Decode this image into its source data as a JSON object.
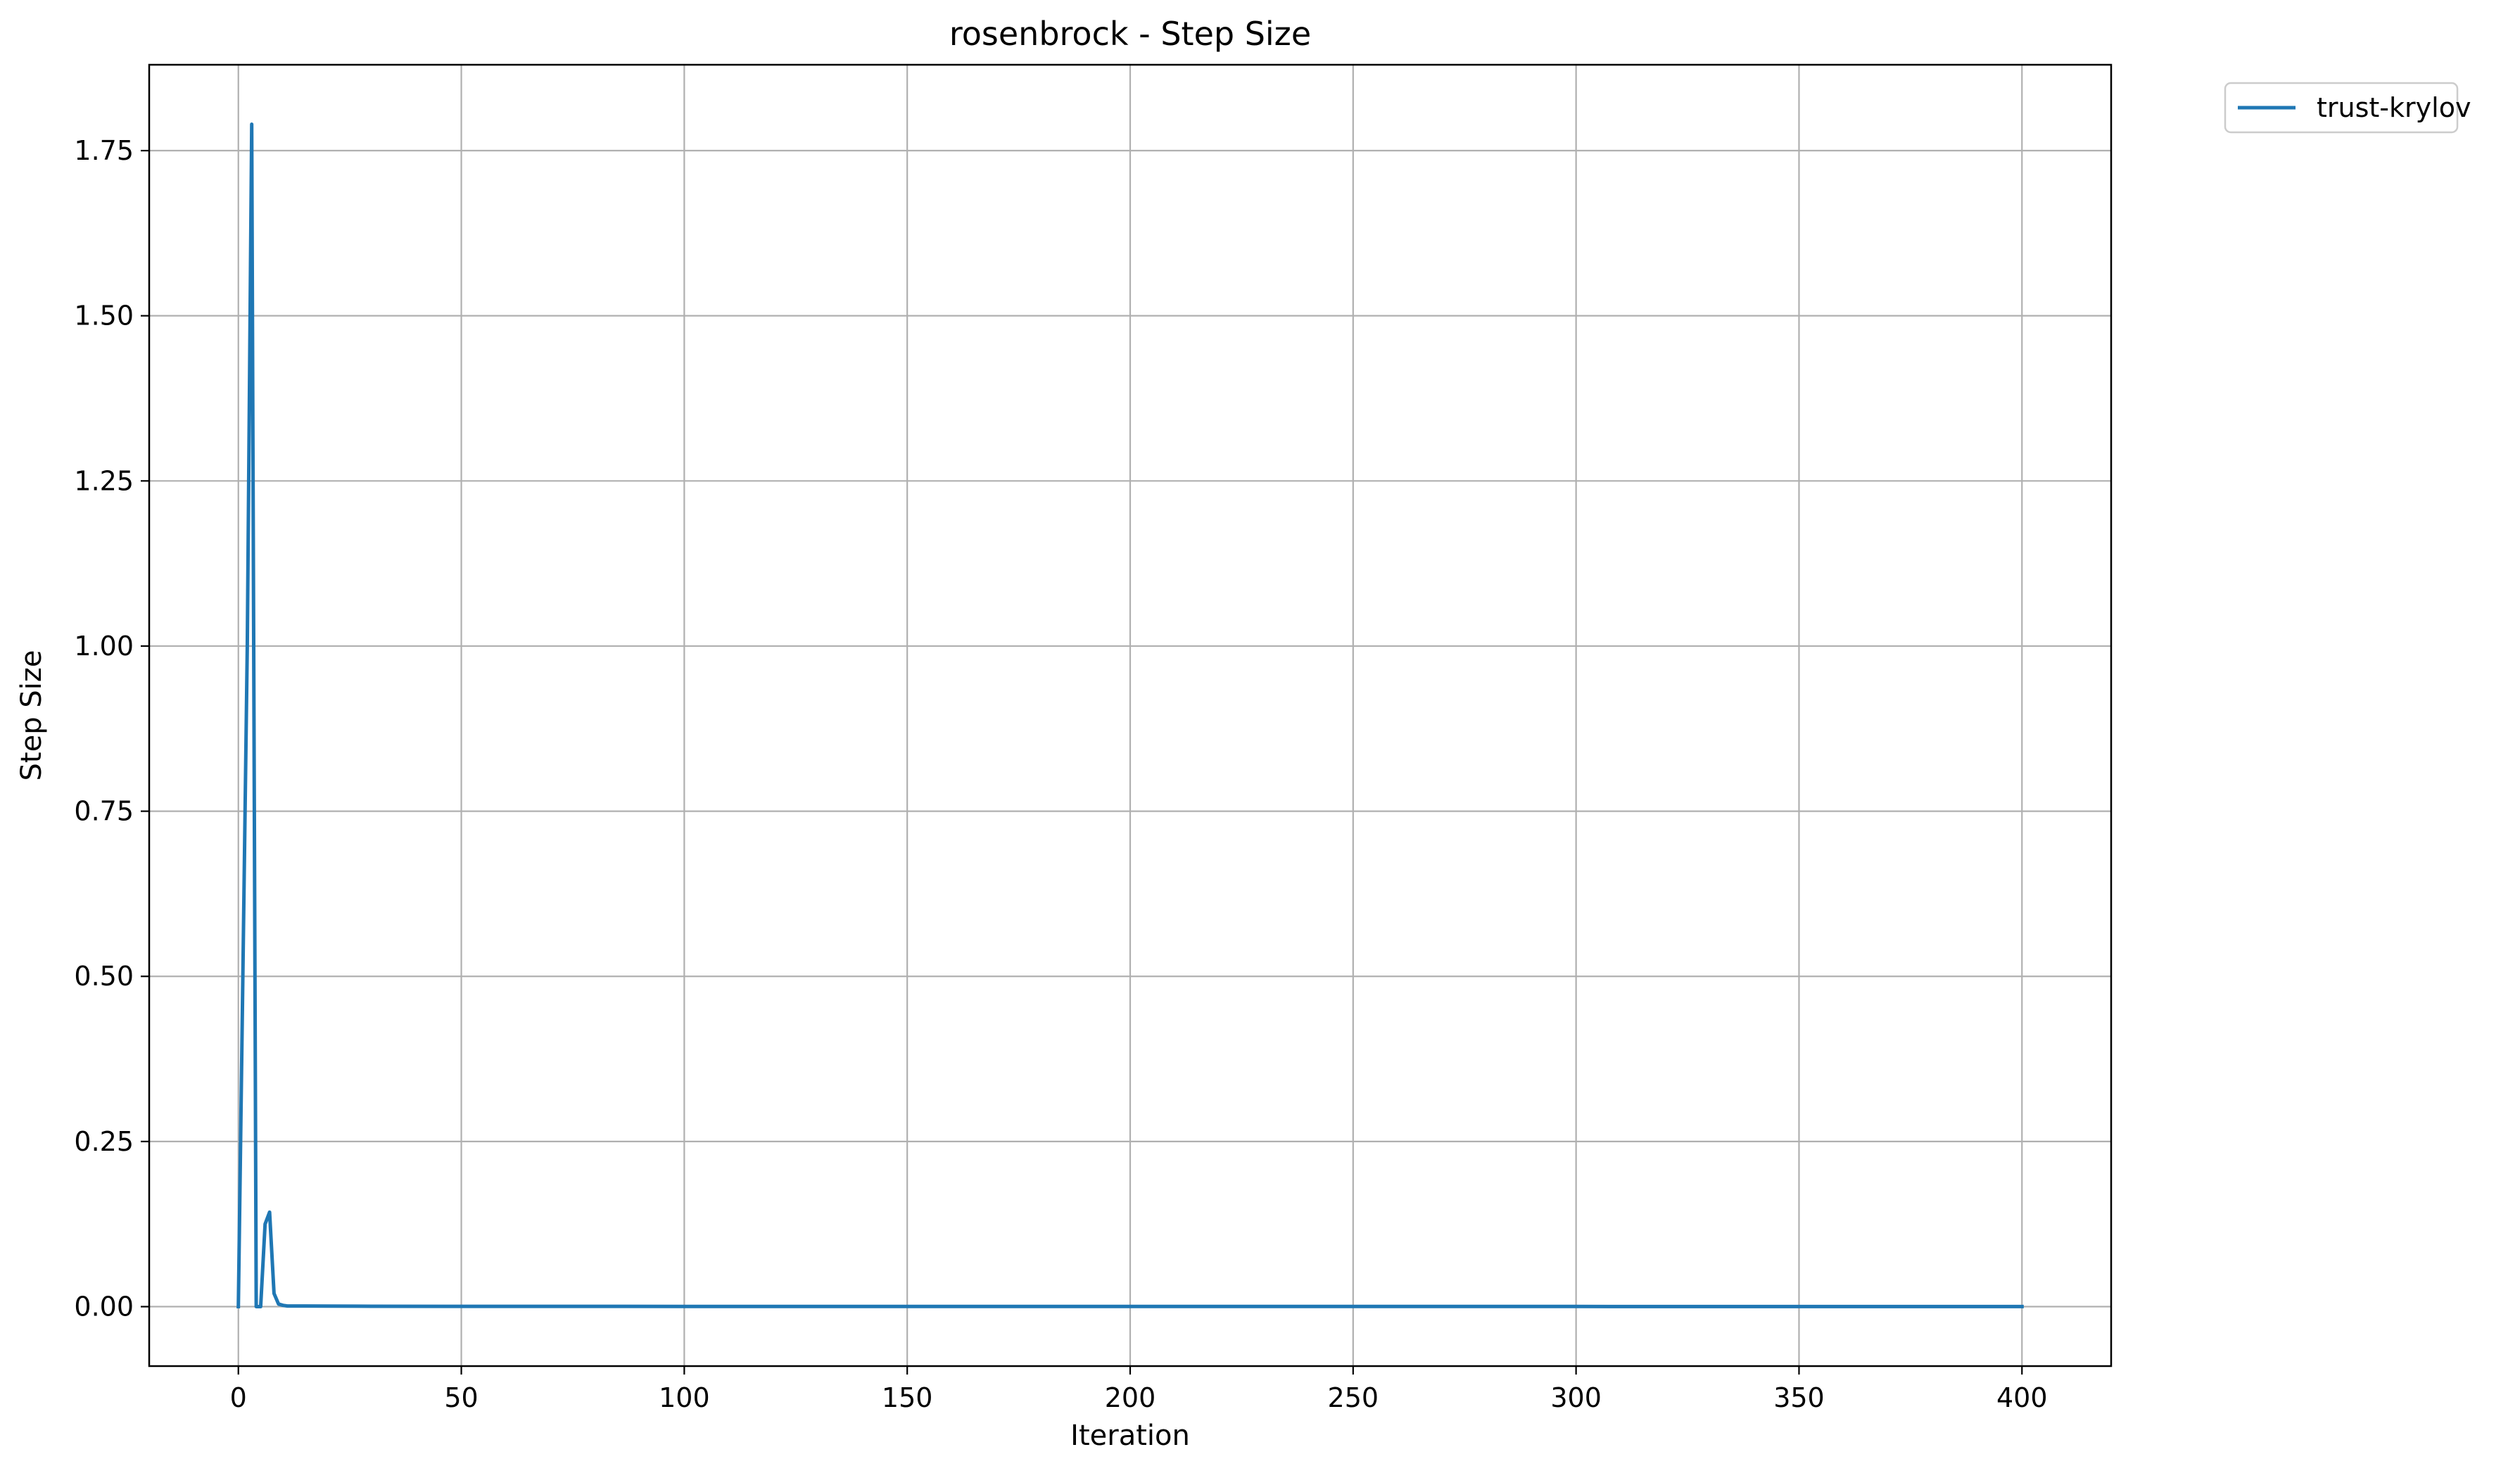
{
  "chart_data": {
    "type": "line",
    "title": "rosenbrock - Step Size",
    "xlabel": "Iteration",
    "ylabel": "Step Size",
    "xlim": [
      -20,
      420
    ],
    "ylim": [
      -0.09,
      1.88
    ],
    "xticks": [
      0,
      50,
      100,
      150,
      200,
      250,
      300,
      350,
      400
    ],
    "xtick_labels": [
      "0",
      "50",
      "100",
      "150",
      "200",
      "250",
      "300",
      "350",
      "400"
    ],
    "yticks": [
      0.0,
      0.25,
      0.5,
      0.75,
      1.0,
      1.25,
      1.5,
      1.75
    ],
    "ytick_labels": [
      "0.00",
      "0.25",
      "0.50",
      "0.75",
      "1.00",
      "1.25",
      "1.50",
      "1.75"
    ],
    "grid": true,
    "legend_position": "outside-top-right",
    "series": [
      {
        "name": "trust-krylov",
        "color": "#1f77b4",
        "x": [
          0,
          1,
          2,
          3,
          4,
          5,
          6,
          7,
          8,
          9,
          10,
          11,
          12,
          15,
          20,
          30,
          50,
          100,
          150,
          200,
          250,
          300,
          350,
          400
        ],
        "y": [
          0.0,
          0.5,
          1.0,
          1.79,
          0.0,
          0.0,
          0.125,
          0.143,
          0.02,
          0.004,
          0.002,
          0.001,
          0.001,
          0.001,
          0.0008,
          0.0006,
          0.0005,
          0.0004,
          0.0003,
          0.0003,
          0.0002,
          0.0002,
          0.0001,
          0.0001
        ]
      }
    ]
  }
}
